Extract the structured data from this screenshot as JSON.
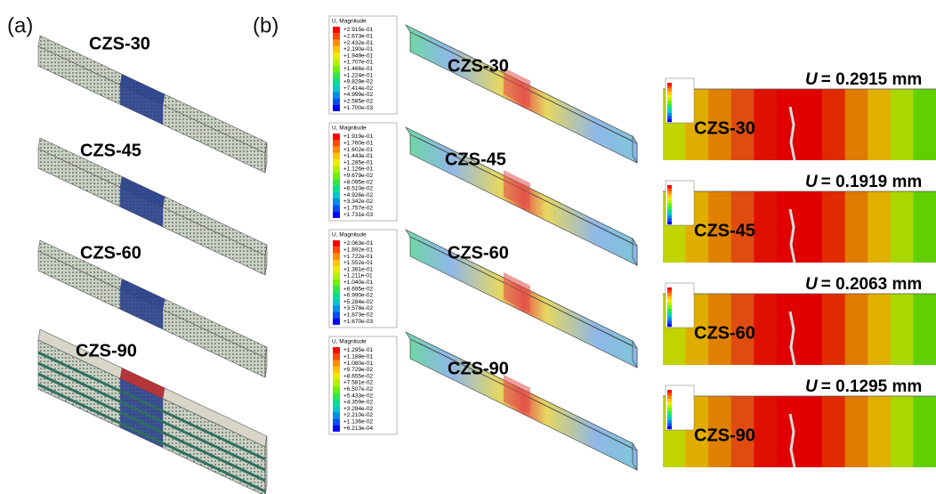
{
  "panel_a": {
    "label": "(a)",
    "models": [
      "CZS-30",
      "CZS-45",
      "CZS-60",
      "CZS-90"
    ]
  },
  "panel_b": {
    "label": "(b)",
    "rows": [
      {
        "model": "CZS-30",
        "legend_title": "U, Magnitude",
        "legend": [
          "+2.915e-01",
          "+2.673e-01",
          "+2.432e-01",
          "+2.190e-01",
          "+1.949e-01",
          "+1.707e-01",
          "+1.466e-01",
          "+1.224e-01",
          "+9.829e-02",
          "+7.414e-02",
          "+4.999e-02",
          "+2.585e-02",
          "+1.700e-03"
        ],
        "symbol": "U",
        "displacement": "= 0.2915 mm"
      },
      {
        "model": "CZS-45",
        "legend_title": "U, Magnitude",
        "legend": [
          "+1.919e-01",
          "+1.760e-01",
          "+1.602e-01",
          "+1.443e-01",
          "+1.285e-01",
          "+1.126e-01",
          "+9.679e-02",
          "+8.095e-02",
          "+6.510e-02",
          "+4.926e-02",
          "+3.342e-02",
          "+1.757e-02",
          "+1.731e-03"
        ],
        "symbol": "U",
        "displacement": "= 0.1919 mm"
      },
      {
        "model": "CZS-60",
        "legend_title": "U, Magnitude",
        "legend": [
          "+2.063e-01",
          "+1.892e-01",
          "+1.722e-01",
          "+1.552e-01",
          "+1.381e-01",
          "+1.211e-01",
          "+1.040e-01",
          "+8.695e-02",
          "+6.990e-02",
          "+5.284e-02",
          "+3.578e-02",
          "+1.873e-02",
          "+1.670e-03"
        ],
        "symbol": "U",
        "displacement": "= 0.2063 mm"
      },
      {
        "model": "CZS-90",
        "legend_title": "U, Magnitude",
        "legend": [
          "+1.295e-01",
          "+1.188e-01",
          "+1.080e-01",
          "+9.729e-02",
          "+8.655e-02",
          "+7.581e-02",
          "+6.507e-02",
          "+5.433e-02",
          "+4.359e-02",
          "+3.284e-02",
          "+2.210e-02",
          "+1.136e-02",
          "+6.213e-04"
        ],
        "symbol": "U",
        "displacement": "= 0.1295 mm"
      }
    ]
  }
}
